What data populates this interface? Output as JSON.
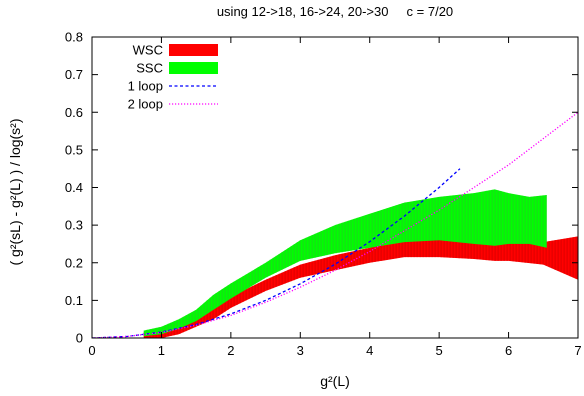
{
  "chart_data": {
    "type": "line",
    "title": "using 12->18, 16->24, 20->30     c = 7/20",
    "xlabel": "g²(L)",
    "ylabel": "( g²(sL) - g²(L) ) / log(s²)",
    "xlim": [
      0,
      7
    ],
    "ylim": [
      0,
      0.8
    ],
    "x_ticks": [
      "0",
      "1",
      "2",
      "3",
      "4",
      "5",
      "6",
      "7"
    ],
    "y_ticks": [
      "0",
      "0.1",
      "0.2",
      "0.3",
      "0.4",
      "0.5",
      "0.6",
      "0.7",
      "0.8"
    ],
    "grid": false,
    "legend_position": "top-left",
    "series": [
      {
        "name": "WSC",
        "kind": "band",
        "color": "#ff0000",
        "x": [
          0.75,
          1.0,
          1.25,
          1.5,
          1.75,
          2.0,
          2.5,
          3.0,
          3.5,
          4.0,
          4.5,
          5.0,
          5.5,
          5.8,
          6.0,
          6.5,
          7.0
        ],
        "lower": [
          0.0,
          0.0,
          0.01,
          0.03,
          0.05,
          0.08,
          0.125,
          0.16,
          0.18,
          0.2,
          0.215,
          0.215,
          0.21,
          0.205,
          0.205,
          0.195,
          0.155
        ],
        "upper": [
          0.015,
          0.02,
          0.035,
          0.06,
          0.085,
          0.11,
          0.155,
          0.195,
          0.22,
          0.24,
          0.26,
          0.275,
          0.29,
          0.3,
          0.29,
          0.255,
          0.27
        ]
      },
      {
        "name": "SSC",
        "kind": "band",
        "color": "#00ff00",
        "x": [
          0.75,
          1.0,
          1.25,
          1.5,
          1.75,
          2.0,
          2.5,
          3.0,
          3.5,
          4.0,
          4.5,
          5.0,
          5.5,
          5.8,
          6.0,
          6.3,
          6.55
        ],
        "lower": [
          0.005,
          0.01,
          0.025,
          0.045,
          0.075,
          0.105,
          0.16,
          0.205,
          0.225,
          0.24,
          0.255,
          0.26,
          0.25,
          0.245,
          0.25,
          0.25,
          0.24
        ],
        "upper": [
          0.02,
          0.03,
          0.05,
          0.075,
          0.115,
          0.145,
          0.2,
          0.26,
          0.3,
          0.33,
          0.36,
          0.375,
          0.385,
          0.395,
          0.385,
          0.375,
          0.38
        ]
      },
      {
        "name": "1 loop",
        "kind": "line",
        "style": "dashed",
        "color": "#0000ff",
        "x": [
          0,
          0.5,
          1.0,
          1.5,
          2.0,
          2.5,
          3.0,
          3.5,
          4.0,
          4.5,
          5.0,
          5.3
        ],
        "y": [
          0,
          0.004,
          0.016,
          0.036,
          0.064,
          0.1,
          0.144,
          0.196,
          0.256,
          0.324,
          0.4,
          0.45
        ]
      },
      {
        "name": "2 loop",
        "kind": "line",
        "style": "dotted",
        "color": "#ff00ff",
        "x": [
          0,
          0.5,
          1.0,
          1.5,
          2.0,
          2.5,
          3.0,
          3.5,
          4.0,
          4.5,
          5.0,
          5.5,
          6.0,
          6.5,
          7.0
        ],
        "y": [
          0,
          0.004,
          0.015,
          0.034,
          0.06,
          0.095,
          0.135,
          0.18,
          0.23,
          0.285,
          0.34,
          0.4,
          0.46,
          0.53,
          0.6
        ]
      }
    ]
  }
}
